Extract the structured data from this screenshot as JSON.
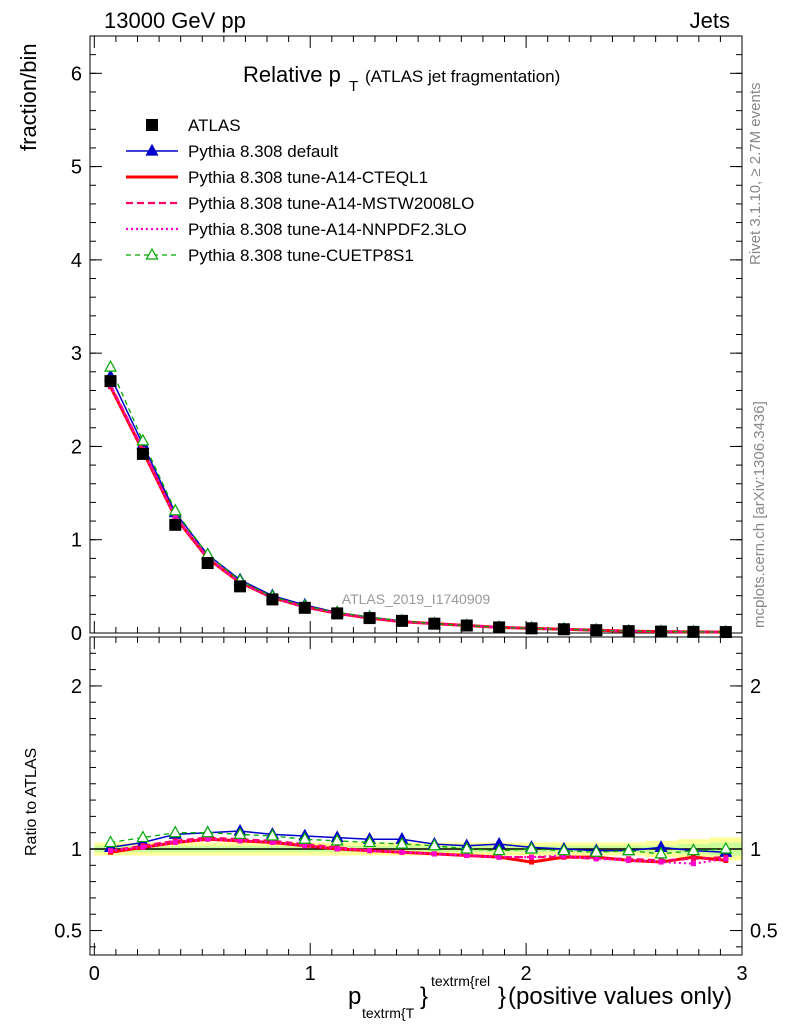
{
  "header": {
    "left": "13000 GeV pp",
    "right": "Jets"
  },
  "title": {
    "main": "Relative p",
    "sub": "T",
    "paren": "(ATLAS jet fragmentation)"
  },
  "side_labels": {
    "rivet": "Rivet 3.1.10, ≥ 2.7M events",
    "mcplots": "mcplots.cern.ch [arXiv:1306.3436]"
  },
  "watermark": "ATLAS_2019_I1740909",
  "xlabel": {
    "p": "p",
    "sub": "textrm{T",
    "sup": "textrm{rel",
    "brace1": "}",
    "brace2": "}",
    "rest": " (positive values only)"
  },
  "chart_data": [
    {
      "type": "line",
      "panel": "main",
      "ylabel": "fraction/bin",
      "xlim": [
        -0.02,
        3.0
      ],
      "ylim": [
        0,
        6.4
      ],
      "yticks": [
        0,
        1,
        2,
        3,
        4,
        5,
        6
      ],
      "xticks": [
        0,
        1,
        2,
        3
      ],
      "x": [
        0.075,
        0.225,
        0.375,
        0.525,
        0.675,
        0.825,
        0.975,
        1.125,
        1.275,
        1.425,
        1.575,
        1.725,
        1.875,
        2.025,
        2.175,
        2.325,
        2.475,
        2.625,
        2.775,
        2.925
      ],
      "series": [
        {
          "name": "ATLAS",
          "color": "#000000",
          "style": "data",
          "values": [
            2.7,
            1.92,
            1.16,
            0.75,
            0.5,
            0.36,
            0.27,
            0.21,
            0.16,
            0.13,
            0.1,
            0.08,
            0.06,
            0.05,
            0.04,
            0.03,
            0.02,
            0.015,
            0.012,
            0.01
          ]
        },
        {
          "name": "Pythia 8.308 default",
          "color": "#0000cc",
          "style": "solid-triangle",
          "values": [
            2.75,
            2.02,
            1.29,
            0.84,
            0.57,
            0.4,
            0.3,
            0.22,
            0.17,
            0.13,
            0.1,
            0.08,
            0.06,
            0.05,
            0.04,
            0.03,
            0.02,
            0.015,
            0.012,
            0.01
          ]
        },
        {
          "name": "Pythia 8.308 tune-A14-CTEQL1",
          "color": "#ff0000",
          "style": "solid-thick",
          "values": [
            2.64,
            1.95,
            1.24,
            0.8,
            0.54,
            0.38,
            0.28,
            0.21,
            0.16,
            0.12,
            0.1,
            0.08,
            0.06,
            0.05,
            0.04,
            0.03,
            0.02,
            0.015,
            0.012,
            0.01
          ]
        },
        {
          "name": "Pythia 8.308 tune-A14-MSTW2008LO",
          "color": "#ff0066",
          "style": "dashed",
          "values": [
            2.66,
            1.97,
            1.25,
            0.81,
            0.54,
            0.38,
            0.28,
            0.21,
            0.16,
            0.12,
            0.1,
            0.08,
            0.06,
            0.05,
            0.04,
            0.03,
            0.02,
            0.015,
            0.012,
            0.01
          ]
        },
        {
          "name": "Pythia 8.308 tune-A14-NNPDF2.3LO",
          "color": "#ff00cc",
          "style": "dotted",
          "values": [
            2.65,
            1.96,
            1.24,
            0.8,
            0.54,
            0.38,
            0.28,
            0.21,
            0.16,
            0.12,
            0.1,
            0.08,
            0.06,
            0.05,
            0.04,
            0.03,
            0.02,
            0.015,
            0.012,
            0.01
          ]
        },
        {
          "name": "Pythia 8.308 tune-CUETP8S1",
          "color": "#00aa00",
          "style": "dashed-open-triangle",
          "values": [
            2.85,
            2.06,
            1.31,
            0.84,
            0.56,
            0.39,
            0.29,
            0.22,
            0.17,
            0.13,
            0.1,
            0.08,
            0.06,
            0.05,
            0.04,
            0.03,
            0.02,
            0.015,
            0.012,
            0.01
          ]
        }
      ]
    },
    {
      "type": "line",
      "panel": "ratio",
      "ylabel": "Ratio to ATLAS",
      "xlim": [
        -0.02,
        3.0
      ],
      "ylim": [
        0.35,
        2.3
      ],
      "yticks": [
        0.5,
        1,
        2
      ],
      "ytick_labels": [
        "0.5",
        "1",
        "2"
      ],
      "x": [
        0.075,
        0.225,
        0.375,
        0.525,
        0.675,
        0.825,
        0.975,
        1.125,
        1.275,
        1.425,
        1.575,
        1.725,
        1.875,
        2.025,
        2.175,
        2.325,
        2.475,
        2.625,
        2.775,
        2.925
      ],
      "band_inner": [
        0.02,
        0.02,
        0.02,
        0.02,
        0.02,
        0.02,
        0.02,
        0.02,
        0.02,
        0.02,
        0.02,
        0.02,
        0.02,
        0.02,
        0.02,
        0.02,
        0.02,
        0.02,
        0.03,
        0.04
      ],
      "band_outer": [
        0.04,
        0.04,
        0.04,
        0.04,
        0.04,
        0.04,
        0.04,
        0.04,
        0.04,
        0.04,
        0.04,
        0.04,
        0.04,
        0.04,
        0.04,
        0.04,
        0.04,
        0.05,
        0.06,
        0.07
      ],
      "series": [
        {
          "name": "Pythia 8.308 default",
          "color": "#0000cc",
          "style": "solid-triangle",
          "values": [
            1.01,
            1.04,
            1.09,
            1.1,
            1.11,
            1.09,
            1.08,
            1.07,
            1.06,
            1.06,
            1.03,
            1.02,
            1.03,
            1.01,
            1.0,
            0.99,
            0.99,
            1.01,
            0.99,
            0.98
          ]
        },
        {
          "name": "Pythia 8.308 tune-A14-CTEQL1",
          "color": "#ff0000",
          "style": "solid-thick",
          "values": [
            0.98,
            1.01,
            1.04,
            1.06,
            1.05,
            1.04,
            1.02,
            1.0,
            0.99,
            0.98,
            0.97,
            0.96,
            0.95,
            0.92,
            0.95,
            0.95,
            0.93,
            0.92,
            0.95,
            0.93
          ]
        },
        {
          "name": "Pythia 8.308 tune-A14-MSTW2008LO",
          "color": "#ff0066",
          "style": "dashed",
          "values": [
            0.99,
            1.02,
            1.05,
            1.07,
            1.06,
            1.05,
            1.03,
            1.01,
            0.99,
            0.98,
            0.97,
            0.96,
            0.95,
            0.95,
            0.95,
            0.94,
            0.94,
            0.93,
            0.94,
            0.95
          ]
        },
        {
          "name": "Pythia 8.308 tune-A14-NNPDF2.3LO",
          "color": "#ff00cc",
          "style": "dotted",
          "values": [
            0.99,
            1.01,
            1.04,
            1.06,
            1.05,
            1.04,
            1.02,
            1.0,
            0.99,
            0.98,
            0.97,
            0.96,
            0.95,
            0.95,
            0.96,
            0.94,
            0.93,
            0.92,
            0.91,
            0.94
          ]
        },
        {
          "name": "Pythia 8.308 tune-CUETP8S1",
          "color": "#00aa00",
          "style": "dashed-open-triangle",
          "values": [
            1.04,
            1.07,
            1.1,
            1.1,
            1.09,
            1.08,
            1.06,
            1.05,
            1.04,
            1.03,
            1.02,
            1.0,
            0.99,
            1.0,
            0.99,
            0.98,
            0.99,
            0.97,
            0.99,
            1.0
          ]
        }
      ]
    }
  ]
}
